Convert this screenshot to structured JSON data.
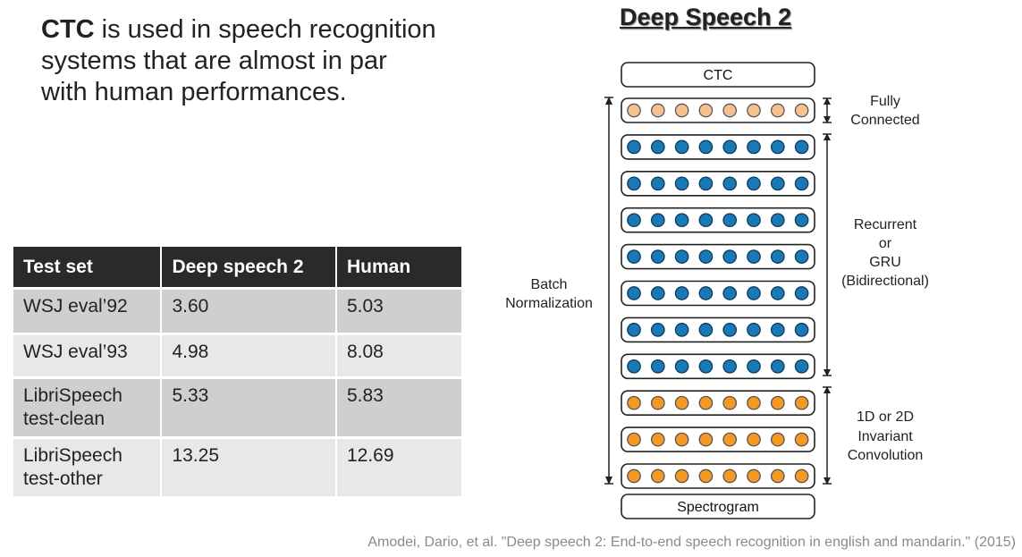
{
  "headline": {
    "bold": "CTC",
    "lines": [
      " is used in speech recognition",
      "systems that are almost in par",
      "with human performances."
    ]
  },
  "table": {
    "headers": [
      "Test set",
      "Deep speech 2",
      "Human"
    ],
    "rows": [
      {
        "test_set_lines": [
          "WSJ eval’92"
        ],
        "ds2": "3.60",
        "human": "5.03"
      },
      {
        "test_set_lines": [
          "WSJ eval’93"
        ],
        "ds2": "4.98",
        "human": "8.08"
      },
      {
        "test_set_lines": [
          "LibriSpeech",
          "test-clean"
        ],
        "ds2": "5.33",
        "human": "5.83"
      },
      {
        "test_set_lines": [
          "LibriSpeech",
          "test-other"
        ],
        "ds2": "13.25",
        "human": "12.69"
      }
    ]
  },
  "diagram": {
    "title": "Deep Speech 2",
    "top_box": "CTC",
    "bottom_box": "Spectrogram",
    "layers": [
      {
        "kind": "fc"
      },
      {
        "kind": "rnn"
      },
      {
        "kind": "rnn"
      },
      {
        "kind": "rnn"
      },
      {
        "kind": "rnn"
      },
      {
        "kind": "rnn"
      },
      {
        "kind": "rnn"
      },
      {
        "kind": "rnn"
      },
      {
        "kind": "conv"
      },
      {
        "kind": "conv"
      },
      {
        "kind": "conv"
      }
    ],
    "nodes_per_layer": 8,
    "colors": {
      "fc": "#f6c08f",
      "rnn": "#1a78b4",
      "conv": "#f49a22"
    },
    "left_label": [
      "Batch",
      "Normalization"
    ],
    "right_labels": {
      "fc": [
        "Fully",
        "Connected"
      ],
      "rnn": [
        "Recurrent",
        "or",
        "GRU",
        "(Bidirectional)"
      ],
      "conv": [
        "1D or 2D",
        "Invariant",
        "Convolution"
      ]
    }
  },
  "citation": "Amodei, Dario, et al. \"Deep speech 2: End-to-end speech recognition in english and mandarin.\"  (2015)"
}
